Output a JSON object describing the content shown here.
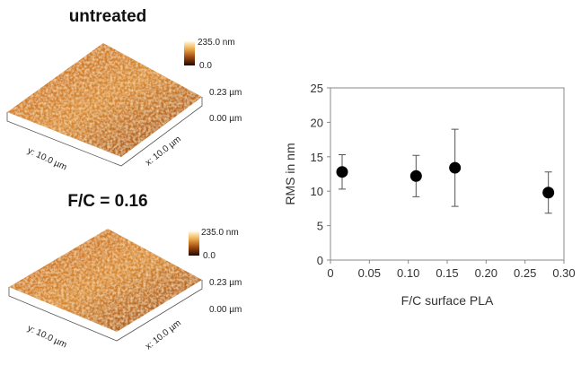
{
  "afm_panels": [
    {
      "title": "untreated",
      "scale_max": "235.0 nm",
      "scale_min": "0.0",
      "z_top": "0.23 µm",
      "z_bottom": "0.00 µm",
      "y_axis": "y: 10.0 µm",
      "x_axis": "x: 10.0 µm"
    },
    {
      "title": "F/C = 0.16",
      "scale_max": "235.0 nm",
      "scale_min": "0.0",
      "z_top": "0.23 µm",
      "z_bottom": "0.00 µm",
      "y_axis": "y: 10.0 µm",
      "x_axis": "x: 10.0 µm"
    }
  ],
  "chart_data": {
    "type": "scatter",
    "xlabel": "F/C surface PLA",
    "ylabel": "RMS in nm",
    "x": [
      0.015,
      0.11,
      0.16,
      0.28
    ],
    "values": [
      12.8,
      12.2,
      13.4,
      9.8
    ],
    "errors": [
      2.5,
      3.0,
      5.6,
      3.0
    ],
    "color": "#000000",
    "xlim": [
      0,
      0.3
    ],
    "xticks": [
      0,
      0.05,
      {
        "value": 0.1,
        "label": "0.10"
      },
      0.15,
      {
        "value": 0.2,
        "label": "0.20"
      },
      0.25,
      {
        "value": 0.3,
        "label": "0.30"
      }
    ],
    "ylim": [
      0,
      25
    ],
    "yticks": [
      0,
      5,
      10,
      15,
      20,
      25
    ]
  }
}
